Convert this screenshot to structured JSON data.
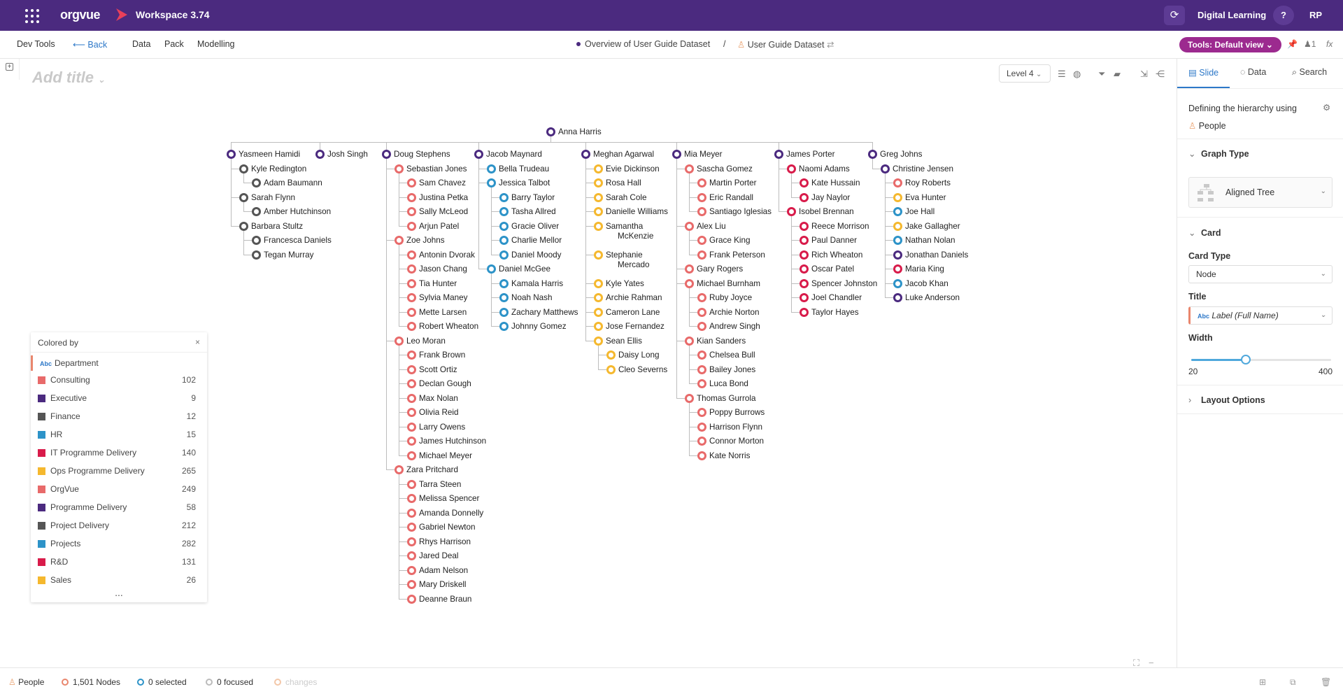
{
  "topbar": {
    "brand": "orgvue",
    "workspace": "Workspace 3.74",
    "user_context": "Digital Learning",
    "help": "?",
    "avatar": "RP"
  },
  "secondary_nav": {
    "items": [
      "Dev Tools",
      "Back",
      "Data",
      "Pack",
      "Modelling"
    ],
    "breadcrumb_1": "Overview of User Guide Dataset",
    "separator": "/",
    "breadcrumb_2": "User Guide Dataset",
    "tools_label": "Tools: Default view",
    "user_count": "1",
    "fx": "fx"
  },
  "canvas": {
    "title_placeholder": "Add title",
    "level": "Level 4"
  },
  "colors": {
    "Consulting": "#e86a6a",
    "Executive": "#4b2a7f",
    "Finance": "#555555",
    "HR": "#2d93c8",
    "IT Programme Delivery": "#d81b4a",
    "Ops Programme Delivery": "#f5b82e",
    "OrgVue": "#e86a6a",
    "Programme Delivery": "#4b2a7f",
    "Project Delivery": "#555555",
    "Projects": "#2d93c8",
    "R&D": "#d81b4a",
    "Sales": "#f5b82e"
  },
  "tree": {
    "root": {
      "name": "Anna Harris",
      "color": "#4b2a7f"
    },
    "columns": [
      {
        "name": "Yasmeen Hamidi",
        "color": "#4b2a7f",
        "children": [
          {
            "name": "Kyle Redington",
            "color": "#555555",
            "children": [
              {
                "name": "Adam Baumann",
                "color": "#555555"
              }
            ]
          },
          {
            "name": "Sarah Flynn",
            "color": "#555555",
            "children": [
              {
                "name": "Amber Hutchinson",
                "color": "#555555"
              }
            ]
          },
          {
            "name": "Barbara Stultz",
            "color": "#555555",
            "children": [
              {
                "name": "Francesca Daniels",
                "color": "#555555"
              },
              {
                "name": "Tegan Murray",
                "color": "#555555"
              }
            ]
          }
        ]
      },
      {
        "name": "Josh Singh",
        "color": "#4b2a7f",
        "children": []
      },
      {
        "name": "Doug Stephens",
        "color": "#4b2a7f",
        "children": [
          {
            "name": "Sebastian Jones",
            "color": "#e86a6a",
            "children": [
              {
                "name": "Sam Chavez",
                "color": "#e86a6a"
              },
              {
                "name": "Justina Petka",
                "color": "#e86a6a"
              },
              {
                "name": "Sally McLeod",
                "color": "#e86a6a"
              },
              {
                "name": "Arjun Patel",
                "color": "#e86a6a"
              }
            ]
          },
          {
            "name": "Zoe Johns",
            "color": "#e86a6a",
            "children": [
              {
                "name": "Antonin Dvorak",
                "color": "#e86a6a"
              },
              {
                "name": "Jason Chang",
                "color": "#e86a6a"
              },
              {
                "name": "Tia Hunter",
                "color": "#e86a6a"
              },
              {
                "name": "Sylvia Maney",
                "color": "#e86a6a"
              },
              {
                "name": "Mette Larsen",
                "color": "#e86a6a"
              },
              {
                "name": "Robert Wheaton",
                "color": "#e86a6a"
              }
            ]
          },
          {
            "name": "Leo Moran",
            "color": "#e86a6a",
            "children": [
              {
                "name": "Frank Brown",
                "color": "#e86a6a"
              },
              {
                "name": "Scott Ortiz",
                "color": "#e86a6a"
              },
              {
                "name": "Declan Gough",
                "color": "#e86a6a"
              },
              {
                "name": "Max Nolan",
                "color": "#e86a6a"
              },
              {
                "name": "Olivia Reid",
                "color": "#e86a6a"
              },
              {
                "name": "Larry Owens",
                "color": "#e86a6a"
              },
              {
                "name": "James Hutchinson",
                "color": "#e86a6a"
              },
              {
                "name": "Michael Meyer",
                "color": "#e86a6a"
              }
            ]
          },
          {
            "name": "Zara Pritchard",
            "color": "#e86a6a",
            "children": [
              {
                "name": "Tarra Steen",
                "color": "#e86a6a"
              },
              {
                "name": "Melissa Spencer",
                "color": "#e86a6a"
              },
              {
                "name": "Amanda Donnelly",
                "color": "#e86a6a"
              },
              {
                "name": "Gabriel Newton",
                "color": "#e86a6a"
              },
              {
                "name": "Rhys Harrison",
                "color": "#e86a6a"
              },
              {
                "name": "Jared Deal",
                "color": "#e86a6a"
              },
              {
                "name": "Adam Nelson",
                "color": "#e86a6a"
              },
              {
                "name": "Mary Driskell",
                "color": "#e86a6a"
              },
              {
                "name": "Deanne Braun",
                "color": "#e86a6a"
              }
            ]
          }
        ]
      },
      {
        "name": "Jacob Maynard",
        "color": "#4b2a7f",
        "children": [
          {
            "name": "Bella Trudeau",
            "color": "#2d93c8",
            "children": []
          },
          {
            "name": "Jessica Talbot",
            "color": "#2d93c8",
            "children": [
              {
                "name": "Barry Taylor",
                "color": "#2d93c8"
              },
              {
                "name": "Tasha Allred",
                "color": "#2d93c8"
              },
              {
                "name": "Gracie Oliver",
                "color": "#2d93c8"
              },
              {
                "name": "Charlie Mellor",
                "color": "#2d93c8"
              },
              {
                "name": "Daniel Moody",
                "color": "#2d93c8"
              }
            ]
          },
          {
            "name": "Daniel McGee",
            "color": "#2d93c8",
            "children": [
              {
                "name": "Kamala Harris",
                "color": "#2d93c8"
              },
              {
                "name": "Noah Nash",
                "color": "#2d93c8"
              },
              {
                "name": "Zachary Matthews",
                "color": "#2d93c8"
              },
              {
                "name": "Johnny Gomez",
                "color": "#2d93c8"
              }
            ]
          }
        ]
      },
      {
        "name": "Meghan Agarwal",
        "color": "#4b2a7f",
        "children": [
          {
            "name": "Evie Dickinson",
            "color": "#f5b82e",
            "children": []
          },
          {
            "name": "Rosa Hall",
            "color": "#f5b82e",
            "children": []
          },
          {
            "name": "Sarah Cole",
            "color": "#f5b82e",
            "children": []
          },
          {
            "name": "Danielle Williams",
            "color": "#f5b82e",
            "children": []
          },
          {
            "name": "Samantha McKenzie",
            "color": "#f5b82e",
            "children": []
          },
          {
            "name": "Stephanie Mercado",
            "color": "#f5b82e",
            "children": []
          },
          {
            "name": "Kyle Yates",
            "color": "#f5b82e",
            "children": []
          },
          {
            "name": "Archie Rahman",
            "color": "#f5b82e",
            "children": []
          },
          {
            "name": "Cameron Lane",
            "color": "#f5b82e",
            "children": []
          },
          {
            "name": "Jose Fernandez",
            "color": "#f5b82e",
            "children": []
          },
          {
            "name": "Sean Ellis",
            "color": "#f5b82e",
            "children": [
              {
                "name": "Daisy Long",
                "color": "#f5b82e"
              },
              {
                "name": "Cleo Severns",
                "color": "#f5b82e"
              }
            ]
          }
        ]
      },
      {
        "name": "Mia Meyer",
        "color": "#4b2a7f",
        "children": [
          {
            "name": "Sascha Gomez",
            "color": "#e86a6a",
            "children": [
              {
                "name": "Martin Porter",
                "color": "#e86a6a"
              },
              {
                "name": "Eric Randall",
                "color": "#e86a6a"
              },
              {
                "name": "Santiago Iglesias",
                "color": "#e86a6a"
              }
            ]
          },
          {
            "name": "Alex Liu",
            "color": "#e86a6a",
            "children": [
              {
                "name": "Grace King",
                "color": "#e86a6a"
              },
              {
                "name": "Frank Peterson",
                "color": "#e86a6a"
              }
            ]
          },
          {
            "name": "Gary Rogers",
            "color": "#e86a6a",
            "children": []
          },
          {
            "name": "Michael Burnham",
            "color": "#e86a6a",
            "children": [
              {
                "name": "Ruby Joyce",
                "color": "#e86a6a"
              },
              {
                "name": "Archie Norton",
                "color": "#e86a6a"
              },
              {
                "name": "Andrew Singh",
                "color": "#e86a6a"
              }
            ]
          },
          {
            "name": "Kian Sanders",
            "color": "#e86a6a",
            "children": [
              {
                "name": "Chelsea Bull",
                "color": "#e86a6a"
              },
              {
                "name": "Bailey Jones",
                "color": "#e86a6a"
              },
              {
                "name": "Luca Bond",
                "color": "#e86a6a"
              }
            ]
          },
          {
            "name": "Thomas Gurrola",
            "color": "#e86a6a",
            "children": [
              {
                "name": "Poppy Burrows",
                "color": "#e86a6a"
              },
              {
                "name": "Harrison Flynn",
                "color": "#e86a6a"
              },
              {
                "name": "Connor Morton",
                "color": "#e86a6a"
              },
              {
                "name": "Kate Norris",
                "color": "#e86a6a"
              }
            ]
          }
        ]
      },
      {
        "name": "James Porter",
        "color": "#4b2a7f",
        "children": [
          {
            "name": "Naomi Adams",
            "color": "#d81b4a",
            "children": [
              {
                "name": "Kate Hussain",
                "color": "#d81b4a"
              },
              {
                "name": "Jay Naylor",
                "color": "#d81b4a"
              }
            ]
          },
          {
            "name": "Isobel Brennan",
            "color": "#d81b4a",
            "children": [
              {
                "name": "Reece Morrison",
                "color": "#d81b4a"
              },
              {
                "name": "Paul Danner",
                "color": "#d81b4a"
              },
              {
                "name": "Rich Wheaton",
                "color": "#d81b4a"
              },
              {
                "name": "Oscar Patel",
                "color": "#d81b4a"
              },
              {
                "name": "Spencer Johnston",
                "color": "#d81b4a"
              },
              {
                "name": "Joel Chandler",
                "color": "#d81b4a"
              },
              {
                "name": "Taylor Hayes",
                "color": "#d81b4a"
              }
            ]
          }
        ]
      },
      {
        "name": "Greg Johns",
        "color": "#4b2a7f",
        "children": [
          {
            "name": "Christine Jensen",
            "color": "#4b2a7f",
            "children": [
              {
                "name": "Roy Roberts",
                "color": "#e86a6a"
              },
              {
                "name": "Eva Hunter",
                "color": "#f5b82e"
              },
              {
                "name": "Joe Hall",
                "color": "#2d93c8"
              },
              {
                "name": "Jake Gallagher",
                "color": "#f5b82e"
              },
              {
                "name": "Nathan Nolan",
                "color": "#2d93c8"
              },
              {
                "name": "Jonathan Daniels",
                "color": "#4b2a7f"
              },
              {
                "name": "Maria King",
                "color": "#d81b4a"
              },
              {
                "name": "Jacob Khan",
                "color": "#2d93c8"
              },
              {
                "name": "Luke Anderson",
                "color": "#4b2a7f"
              }
            ]
          }
        ]
      }
    ]
  },
  "legend": {
    "title": "Colored by",
    "close": "×",
    "field": "Department",
    "field_type": "Abc",
    "more": "...",
    "items": [
      {
        "label": "Consulting",
        "count": "102",
        "color": "#e86a6a"
      },
      {
        "label": "Executive",
        "count": "9",
        "color": "#4b2a7f"
      },
      {
        "label": "Finance",
        "count": "12",
        "color": "#555555"
      },
      {
        "label": "HR",
        "count": "15",
        "color": "#2d93c8"
      },
      {
        "label": "IT Programme Delivery",
        "count": "140",
        "color": "#d81b4a"
      },
      {
        "label": "Ops Programme Delivery",
        "count": "265",
        "color": "#f5b82e"
      },
      {
        "label": "OrgVue",
        "count": "249",
        "color": "#e86a6a"
      },
      {
        "label": "Programme Delivery",
        "count": "58",
        "color": "#4b2a7f"
      },
      {
        "label": "Project Delivery",
        "count": "212",
        "color": "#555555"
      },
      {
        "label": "Projects",
        "count": "282",
        "color": "#2d93c8"
      },
      {
        "label": "R&D",
        "count": "131",
        "color": "#d81b4a"
      },
      {
        "label": "Sales",
        "count": "26",
        "color": "#f5b82e"
      }
    ]
  },
  "right_panel": {
    "tabs": [
      "Slide",
      "Data",
      "Search"
    ],
    "hierarchy_label": "Defining the hierarchy using",
    "hierarchy_dim": "People",
    "graph_type_header": "Graph Type",
    "graph_type_value": "Aligned Tree",
    "card_header": "Card",
    "card_type_label": "Card Type",
    "card_type_value": "Node",
    "title_label": "Title",
    "title_type": "Abc",
    "title_value": "Label (Full Name)",
    "width_label": "Width",
    "width_min": "20",
    "width_max": "400",
    "width_fraction": 0.39,
    "layout_options": "Layout Options"
  },
  "statusbar": {
    "dim": "People",
    "nodes": "1,501 Nodes",
    "selected": "0 selected",
    "focused": "0 focused",
    "changes": "changes"
  }
}
